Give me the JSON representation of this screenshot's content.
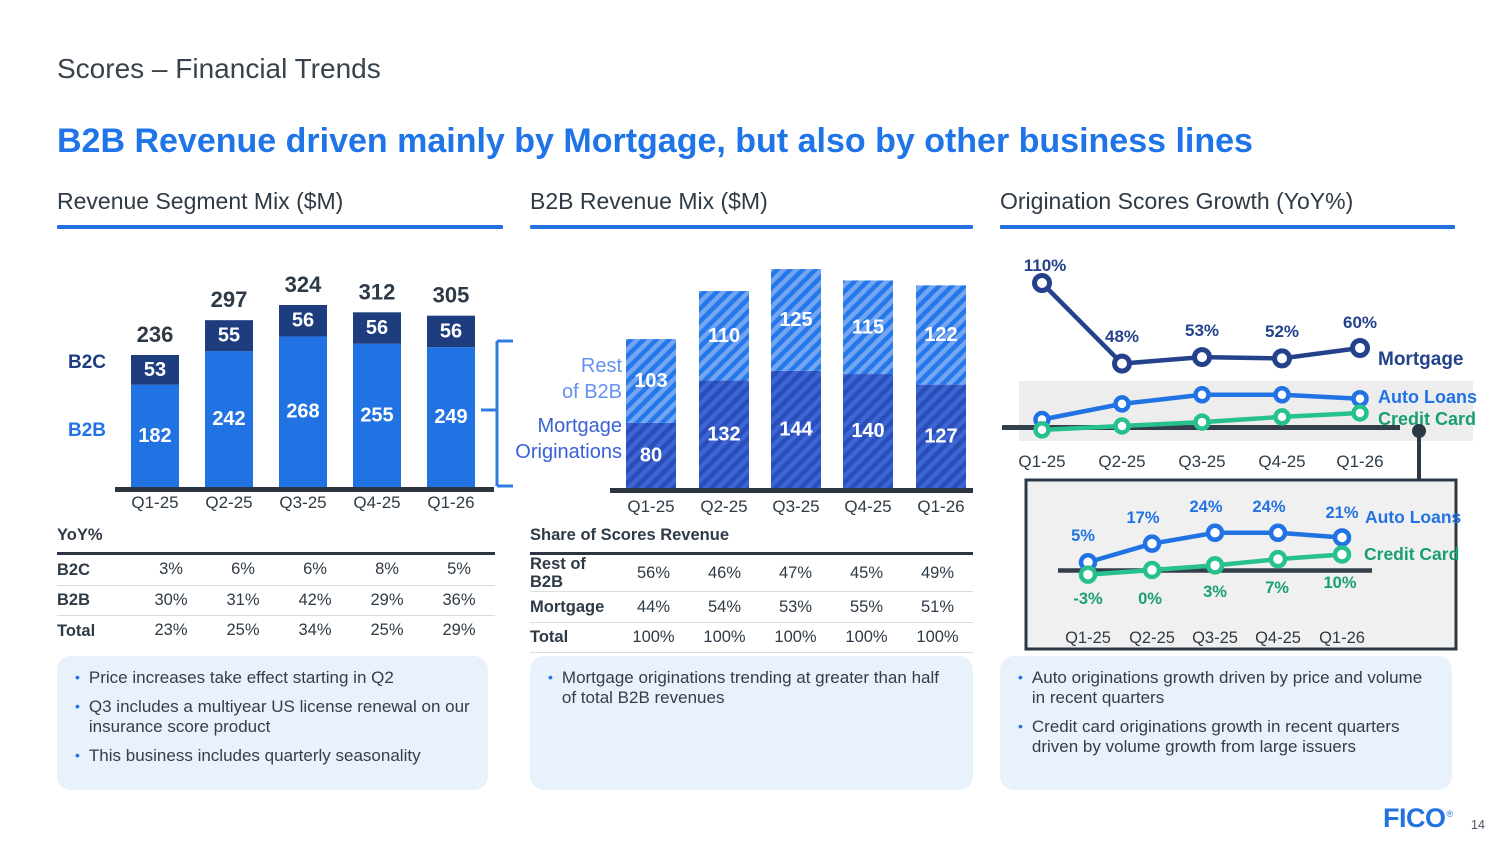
{
  "slide": {
    "kicker": "Scores – Financial Trends",
    "headline": "B2B Revenue driven mainly by Mortgage, but also by other business lines",
    "page_number": "14",
    "logo_text": "FICO",
    "logo_reg_mark": "®"
  },
  "colors": {
    "accent": "#2273e0",
    "headline_blue": "#1f74e8",
    "bright_blue": "#2173e3",
    "navy": "#1d3d7f",
    "line_navy": "#24428c",
    "green": "#27c08f",
    "green_text": "#189f72",
    "dark_text": "#2e3a46",
    "axis_dark": "#2b3642",
    "band_gray": "#ededed",
    "inset_bg": "#f0f0f0",
    "note_bg": "#e9f1fc",
    "rest_label": "#6292f0",
    "mortgage_label": "#3a60d4",
    "rest_base": "#2478e9",
    "rest_hatch": "#74a5f2",
    "mort_base": "#2a4eb9",
    "mort_hatch": "#3d65d3",
    "bracket_blue": "#2e7ce2",
    "connector_dark": "#2b3947",
    "row_line": "#d9dde2"
  },
  "panels": [
    {
      "title": "Revenue Segment Mix ($M)",
      "table": {
        "header": "YoY%",
        "rows": [
          {
            "label": "B2C",
            "values": [
              "3%",
              "6%",
              "6%",
              "8%",
              "5%"
            ]
          },
          {
            "label": "B2B",
            "values": [
              "30%",
              "31%",
              "42%",
              "29%",
              "36%"
            ]
          },
          {
            "label": "Total",
            "values": [
              "23%",
              "25%",
              "34%",
              "25%",
              "29%"
            ]
          }
        ]
      },
      "notes": [
        "Price increases take effect starting in Q2",
        "Q3 includes a multiyear US license renewal on our insurance score product",
        "This business includes quarterly seasonality"
      ]
    },
    {
      "title": "B2B Revenue Mix ($M)",
      "table": {
        "header": "Share of Scores Revenue",
        "rows": [
          {
            "label": "Rest of B2B",
            "values": [
              "56%",
              "46%",
              "47%",
              "45%",
              "49%"
            ]
          },
          {
            "label": "Mortgage",
            "values": [
              "44%",
              "54%",
              "53%",
              "55%",
              "51%"
            ]
          },
          {
            "label": "Total",
            "values": [
              "100%",
              "100%",
              "100%",
              "100%",
              "100%"
            ]
          }
        ]
      },
      "notes": [
        "Mortgage originations trending at greater than half of total B2B revenues"
      ]
    },
    {
      "title": "Origination Scores Growth (YoY%)",
      "notes": [
        "Auto originations growth driven by price and volume in recent quarters",
        "Credit card originations growth in recent quarters driven by volume growth from large issuers"
      ]
    }
  ],
  "chart_data": [
    {
      "type": "bar",
      "stacked": true,
      "title": "Revenue Segment Mix ($M)",
      "unit": "$M",
      "legend_position": "left",
      "categories": [
        "Q1-25",
        "Q2-25",
        "Q3-25",
        "Q4-25",
        "Q1-26"
      ],
      "series": [
        {
          "name": "B2B",
          "values": [
            182,
            242,
            268,
            255,
            249
          ]
        },
        {
          "name": "B2C",
          "values": [
            53,
            55,
            56,
            56,
            56
          ]
        }
      ],
      "totals": [
        236,
        297,
        324,
        312,
        305
      ]
    },
    {
      "type": "bar",
      "stacked": true,
      "hatched": true,
      "title": "B2B Revenue Mix ($M)",
      "unit": "$M",
      "legend_position": "left",
      "categories": [
        "Q1-25",
        "Q2-25",
        "Q3-25",
        "Q4-25",
        "Q1-26"
      ],
      "series": [
        {
          "name": "Mortgage Originations",
          "values": [
            80,
            132,
            144,
            140,
            127
          ]
        },
        {
          "name": "Rest of B2B",
          "values": [
            103,
            110,
            125,
            115,
            122
          ]
        }
      ]
    },
    {
      "type": "line",
      "title": "Origination Scores Growth (YoY%)",
      "unit": "%",
      "zero_axis": true,
      "categories": [
        "Q1-25",
        "Q2-25",
        "Q3-25",
        "Q4-25",
        "Q1-26"
      ],
      "series": [
        {
          "name": "Mortgage",
          "values": [
            110,
            48,
            53,
            52,
            60
          ],
          "labels": [
            "110%",
            "48%",
            "53%",
            "52%",
            "60%"
          ],
          "labels_shown": "main"
        },
        {
          "name": "Auto Loans",
          "values": [
            5,
            17,
            24,
            24,
            21
          ],
          "labels": [
            "5%",
            "17%",
            "24%",
            "24%",
            "21%"
          ],
          "labels_shown": "inset"
        },
        {
          "name": "Credit Card",
          "values": [
            -3,
            0,
            3,
            7,
            10
          ],
          "labels": [
            "-3%",
            "0%",
            "3%",
            "7%",
            "10%"
          ],
          "labels_shown": "inset"
        }
      ],
      "inset": {
        "label": "zoomed detail of Auto Loans and Credit Card",
        "categories": [
          "Q1-25",
          "Q2-25",
          "Q3-25",
          "Q4-25",
          "Q1-26"
        ],
        "series_shown": [
          "Auto Loans",
          "Credit Card"
        ]
      }
    }
  ]
}
